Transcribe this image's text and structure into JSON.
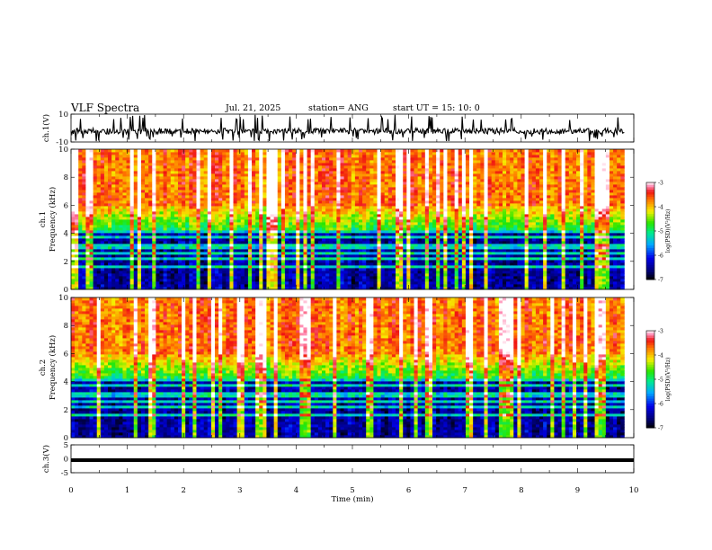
{
  "header": {
    "title": "VLF Spectra",
    "date": "Jul. 21, 2025",
    "station": "station= ANG",
    "start": "start UT = 15: 10: 0"
  },
  "chart_data": [
    {
      "type": "line",
      "name": "ch1-waveform",
      "ylabel": "ch.1(V)",
      "ylim": [
        -10,
        10
      ],
      "yticks": [
        "10",
        "-10"
      ],
      "xlim": [
        0,
        10
      ]
    },
    {
      "type": "heatmap",
      "name": "ch1-spectrogram",
      "ylabel_top": "ch.1",
      "ylabel": "Frequency (kHz)",
      "ylim": [
        0,
        10
      ],
      "yticks": [
        "0",
        "2",
        "4",
        "6",
        "8",
        "10"
      ],
      "xlim": [
        0,
        10
      ],
      "colorbar": {
        "ticks": [
          "-3",
          "-4",
          "-5",
          "-6",
          "-7"
        ],
        "range": [
          -7,
          -3
        ],
        "label": "log(PSD)(V²/Hz)"
      }
    },
    {
      "type": "heatmap",
      "name": "ch2-spectrogram",
      "ylabel_top": "ch.2",
      "ylabel": "Frequency (kHz)",
      "ylim": [
        0,
        10
      ],
      "yticks": [
        "0",
        "2",
        "4",
        "6",
        "8",
        "10"
      ],
      "xlim": [
        0,
        10
      ],
      "colorbar": {
        "ticks": [
          "-3",
          "-4",
          "-5",
          "-6",
          "-7"
        ],
        "range": [
          -7,
          -3
        ],
        "label": "log(PSD)(V²/Hz)"
      }
    },
    {
      "type": "line",
      "name": "ch3-trace",
      "ylabel": "ch.3(V)",
      "ylim": [
        -5,
        5
      ],
      "yticks": [
        "5",
        "0",
        "-5"
      ],
      "xlim": [
        0,
        10
      ],
      "level": -0.5
    }
  ],
  "xaxis": {
    "label": "Time (min)",
    "ticks": [
      "0",
      "1",
      "2",
      "3",
      "4",
      "5",
      "6",
      "7",
      "8",
      "9",
      "10"
    ]
  }
}
